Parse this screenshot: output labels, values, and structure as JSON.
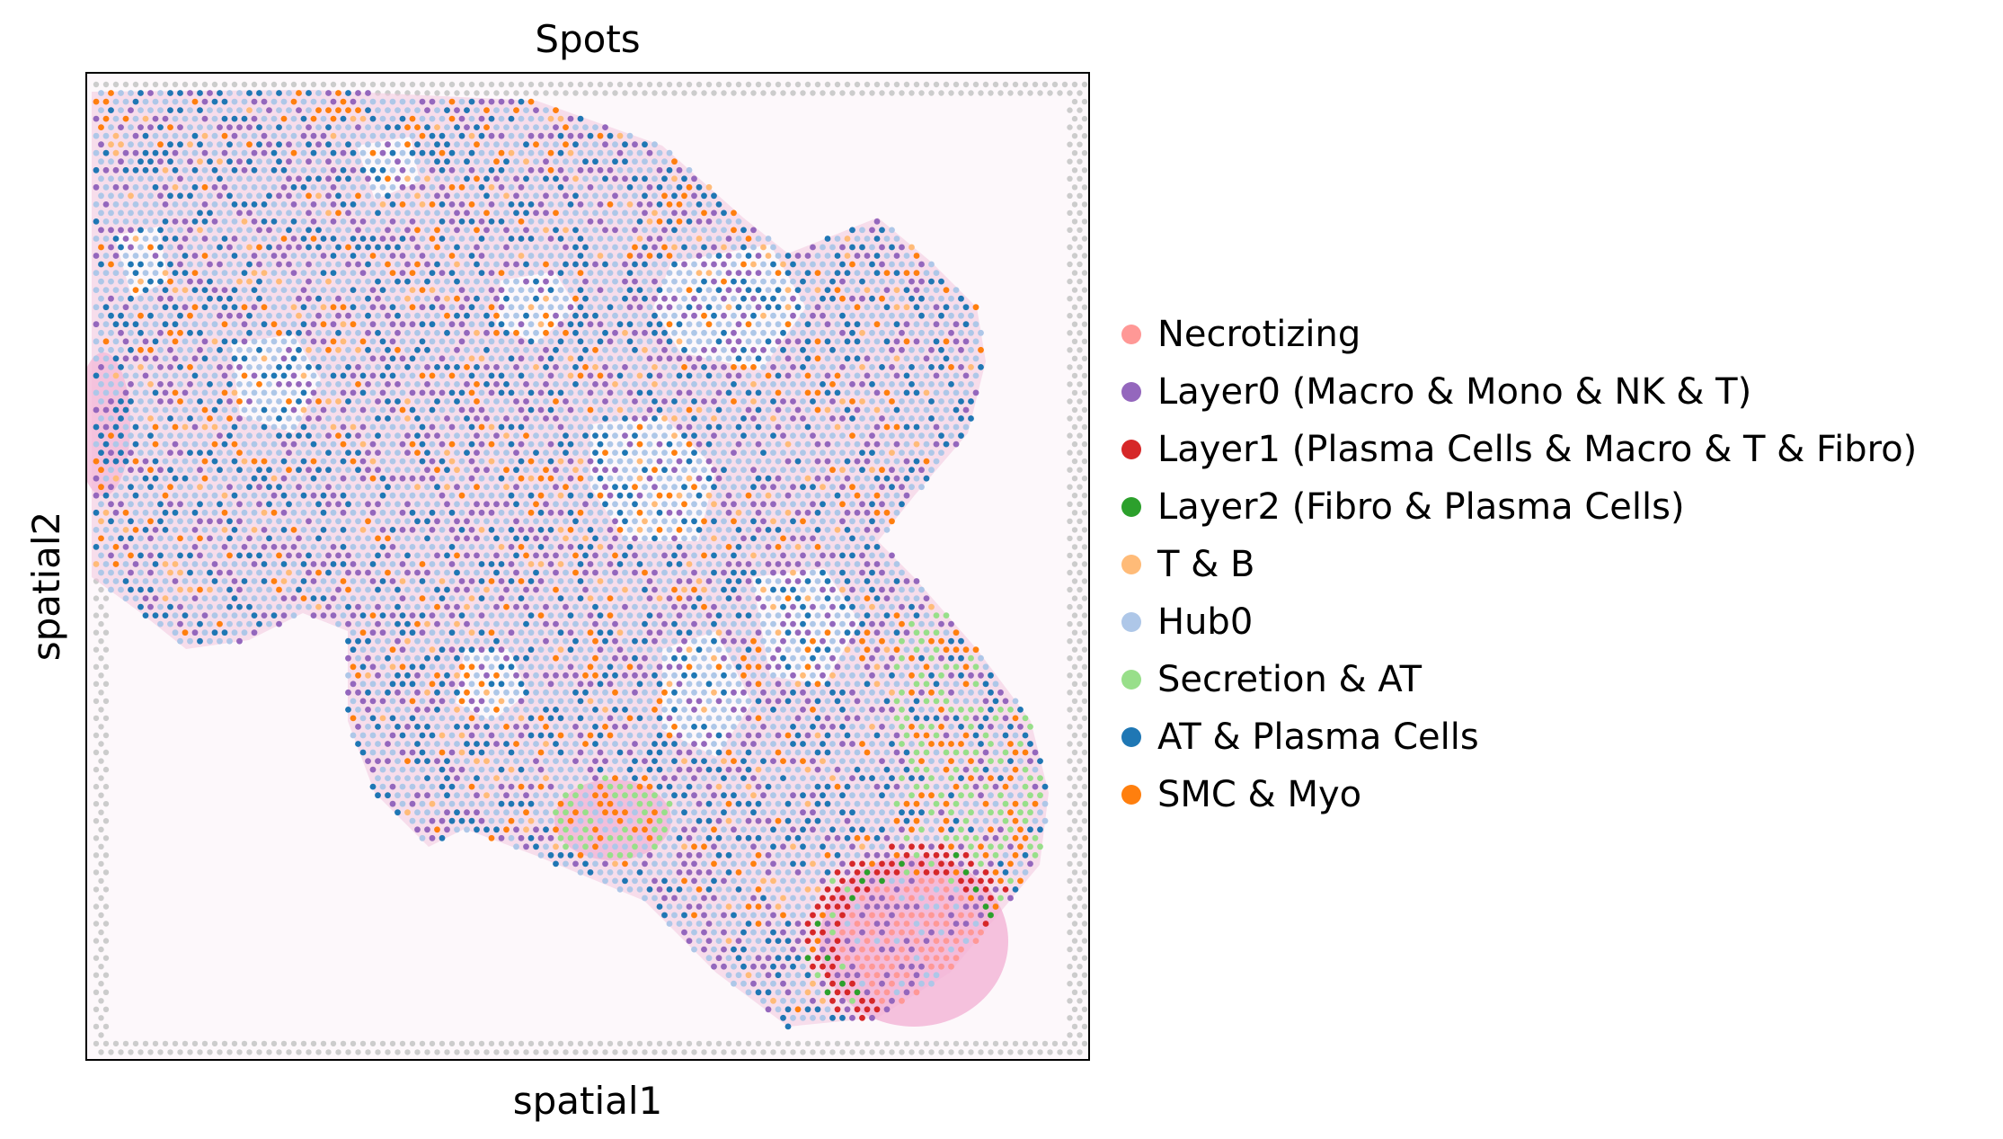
{
  "title": "Spots",
  "xlabel": "spatial1",
  "ylabel": "spatial2",
  "background_spot_color": "#cccccc",
  "tissue_color": "#f3c6df",
  "legend": [
    {
      "label": "Necrotizing",
      "color": "#ff9896"
    },
    {
      "label": "Layer0 (Macro & Mono & NK & T)",
      "color": "#9467bd"
    },
    {
      "label": "Layer1 (Plasma Cells & Macro & T & Fibro)",
      "color": "#d62728"
    },
    {
      "label": "Layer2 (Fibro & Plasma Cells)",
      "color": "#2ca02c"
    },
    {
      "label": "T & B",
      "color": "#ffbb78"
    },
    {
      "label": "Hub0",
      "color": "#aec7e8"
    },
    {
      "label": "Secretion & AT",
      "color": "#98df8a"
    },
    {
      "label": "AT & Plasma Cells",
      "color": "#1f77b4"
    },
    {
      "label": "SMC & Myo",
      "color": "#ff7f0e"
    }
  ]
}
